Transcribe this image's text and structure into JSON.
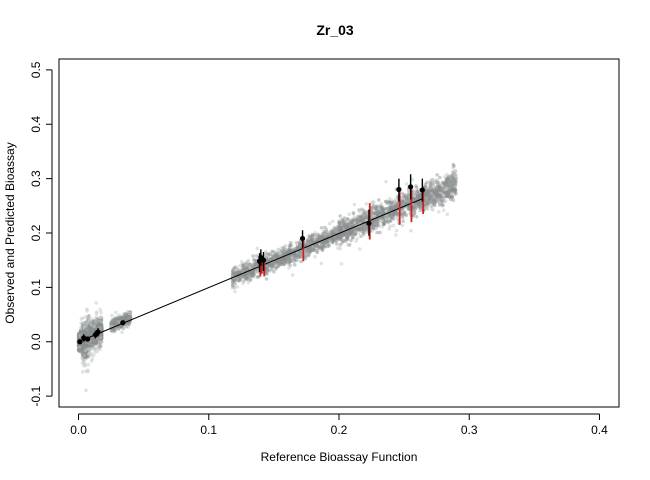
{
  "chart_data": {
    "type": "scatter",
    "title": "Zr_03",
    "xlabel": "Reference Bioassay Function",
    "ylabel": "Observed and Predicted Bioassay",
    "xlim": [
      -0.015,
      0.415
    ],
    "ylim": [
      -0.12,
      0.52
    ],
    "xticks": [
      0.0,
      0.1,
      0.2,
      0.3,
      0.4
    ],
    "xtick_labels": [
      "0.0",
      "0.1",
      "0.2",
      "0.3",
      "0.4"
    ],
    "yticks": [
      -0.1,
      0.0,
      0.1,
      0.2,
      0.3,
      0.4,
      0.5
    ],
    "ytick_labels": [
      "-0.1",
      "0.0",
      "0.1",
      "0.2",
      "0.3",
      "0.4",
      "0.5"
    ],
    "grid": false,
    "colors": {
      "cloud": "#8a8f8f",
      "cloud_light": "#c8cccc",
      "interval": "#cc2222",
      "observed_bar": "#000000",
      "observed_point": "#000000",
      "fit_line": "#000000"
    },
    "clusters": [
      {
        "x_min": 0.0,
        "x_max": 0.003,
        "y_center": 0.002,
        "y_spread": 0.02,
        "density": 0.55
      },
      {
        "x_min": 0.003,
        "x_max": 0.008,
        "y_center": 0.005,
        "y_spread": 0.035,
        "density": 0.9
      },
      {
        "x_min": 0.008,
        "x_max": 0.018,
        "y_center": 0.015,
        "y_spread": 0.025,
        "density": 1.0
      },
      {
        "x_min": 0.025,
        "x_max": 0.04,
        "y_center": 0.036,
        "y_spread": 0.012,
        "density": 0.55
      },
      {
        "x_min": 0.118,
        "x_max": 0.2,
        "y_center": 0.158,
        "y_spread": 0.022,
        "density": 1.0
      },
      {
        "x_min": 0.2,
        "x_max": 0.29,
        "y_center": 0.245,
        "y_spread": 0.028,
        "density": 1.35
      }
    ],
    "observed": [
      {
        "x": 0.001,
        "y": 0.0,
        "lo": -0.004,
        "hi": 0.004,
        "pred_lo": -0.002,
        "pred_hi": 0.002
      },
      {
        "x": 0.004,
        "y": 0.007,
        "lo": 0.0,
        "hi": 0.014,
        "pred_lo": 0.001,
        "pred_hi": 0.008
      },
      {
        "x": 0.007,
        "y": 0.005,
        "lo": 0.002,
        "hi": 0.009,
        "pred_lo": 0.003,
        "pred_hi": 0.007
      },
      {
        "x": 0.013,
        "y": 0.013,
        "lo": 0.006,
        "hi": 0.02,
        "pred_lo": 0.008,
        "pred_hi": 0.017
      },
      {
        "x": 0.015,
        "y": 0.018,
        "lo": 0.01,
        "hi": 0.025,
        "pred_lo": 0.012,
        "pred_hi": 0.02
      },
      {
        "x": 0.034,
        "y": 0.035,
        "lo": 0.032,
        "hi": 0.038,
        "pred_lo": 0.033,
        "pred_hi": 0.037
      },
      {
        "x": 0.139,
        "y": 0.148,
        "lo": 0.128,
        "hi": 0.163,
        "pred_lo": 0.12,
        "pred_hi": 0.15
      },
      {
        "x": 0.14,
        "y": 0.155,
        "lo": 0.14,
        "hi": 0.17,
        "pred_lo": 0.125,
        "pred_hi": 0.155
      },
      {
        "x": 0.142,
        "y": 0.15,
        "lo": 0.13,
        "hi": 0.165,
        "pred_lo": 0.12,
        "pred_hi": 0.148
      },
      {
        "x": 0.172,
        "y": 0.19,
        "lo": 0.172,
        "hi": 0.205,
        "pred_lo": 0.148,
        "pred_hi": 0.185
      },
      {
        "x": 0.223,
        "y": 0.218,
        "lo": 0.195,
        "hi": 0.243,
        "pred_lo": 0.188,
        "pred_hi": 0.255
      },
      {
        "x": 0.246,
        "y": 0.28,
        "lo": 0.258,
        "hi": 0.3,
        "pred_lo": 0.215,
        "pred_hi": 0.275
      },
      {
        "x": 0.255,
        "y": 0.285,
        "lo": 0.262,
        "hi": 0.308,
        "pred_lo": 0.22,
        "pred_hi": 0.28
      },
      {
        "x": 0.264,
        "y": 0.279,
        "lo": 0.258,
        "hi": 0.3,
        "pred_lo": 0.235,
        "pred_hi": 0.285
      }
    ],
    "fit_line": {
      "x": [
        0.0,
        0.264
      ],
      "y": [
        0.0,
        0.263
      ]
    }
  }
}
